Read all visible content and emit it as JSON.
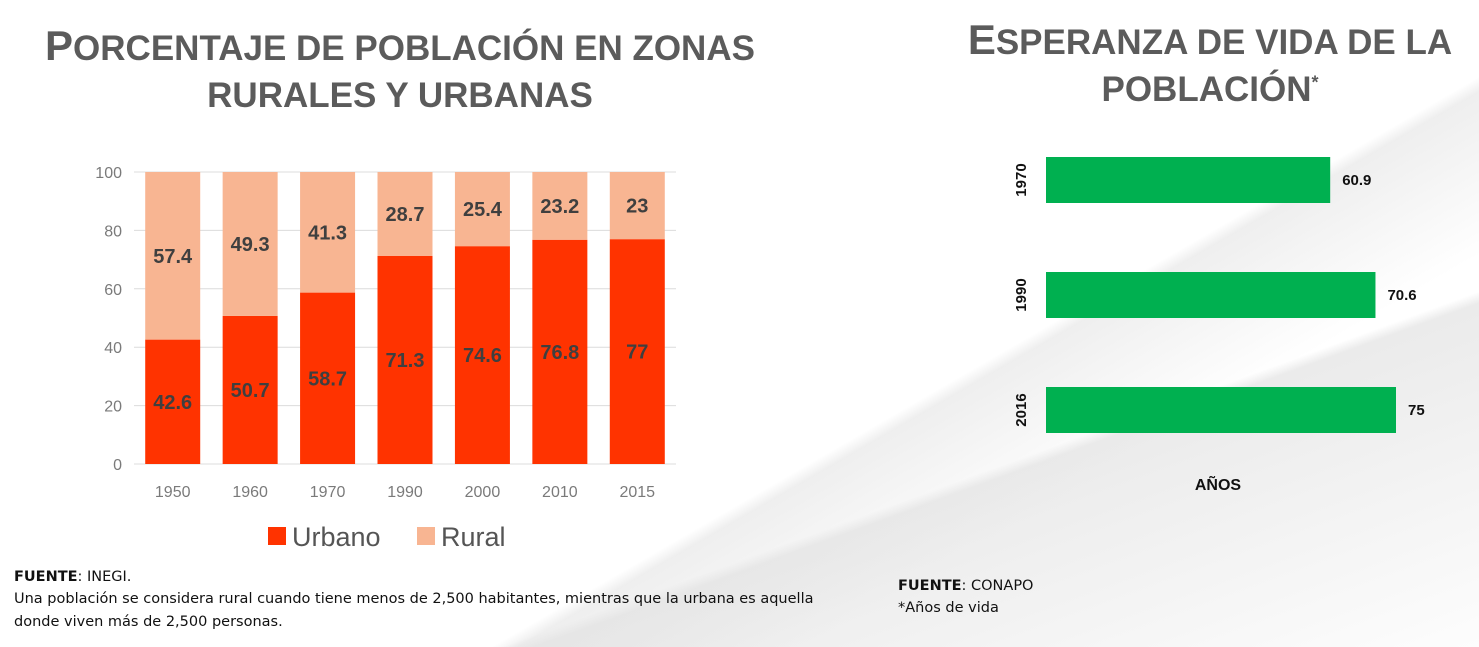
{
  "title_left": {
    "first": "P",
    "rest": "orcentaje de población en zonas",
    "line2": "rurales y urbanas"
  },
  "title_right": {
    "first": "E",
    "rest": "speranza de vida de la",
    "line2": "población",
    "star": "*"
  },
  "note_left": {
    "source_label": "FUENTE",
    "source_value": ": INEGI.",
    "definition": "Una población se considera rural cuando tiene menos de 2,500 habitantes, mientras que la urbana es aquella donde viven más de 2,500 personas."
  },
  "note_right": {
    "source_label": "FUENTE",
    "source_value": ": CONAPO",
    "footnote": "*Años de vida"
  },
  "colors": {
    "urbano": "#ff3300",
    "rural": "#f8b592",
    "life": "#00b050"
  },
  "chart_data": [
    {
      "type": "bar",
      "stacked": true,
      "categories": [
        "1950",
        "1960",
        "1970",
        "1990",
        "2000",
        "2010",
        "2015"
      ],
      "series": [
        {
          "name": "Urbano",
          "values": [
            42.6,
            50.7,
            58.7,
            71.3,
            74.6,
            76.8,
            77
          ]
        },
        {
          "name": "Rural",
          "values": [
            57.4,
            49.3,
            41.3,
            28.7,
            25.4,
            23.2,
            23
          ]
        }
      ],
      "ylim": [
        0,
        100
      ],
      "yticks": [
        0,
        20,
        40,
        60,
        80,
        100
      ],
      "grid": true,
      "legend": "bottom"
    },
    {
      "type": "bar",
      "orientation": "horizontal",
      "categories": [
        "1970",
        "1990",
        "2016"
      ],
      "values": [
        60.9,
        70.6,
        75
      ],
      "xlabel": "AÑOS"
    }
  ]
}
